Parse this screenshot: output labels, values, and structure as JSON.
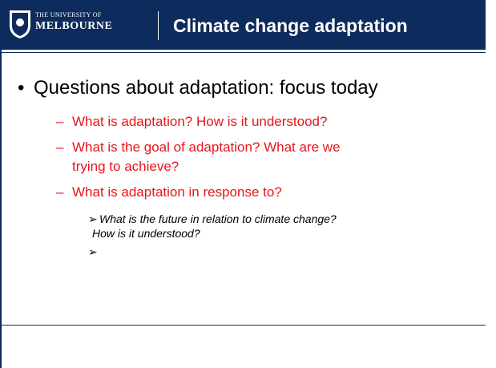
{
  "header": {
    "logo_line1": "THE UNIVERSITY OF",
    "logo_line2": "MELBOURNE",
    "title": "Climate change adaptation"
  },
  "bullets": {
    "main": "Questions about adaptation: focus today",
    "sub": [
      "What is adaptation? How is it understood?",
      "What is the goal of adaptation? What are we",
      "trying to achieve?",
      "What is adaptation in response to?"
    ],
    "subsub": [
      "What is the future in relation to climate change?",
      "How is it understood?"
    ]
  }
}
